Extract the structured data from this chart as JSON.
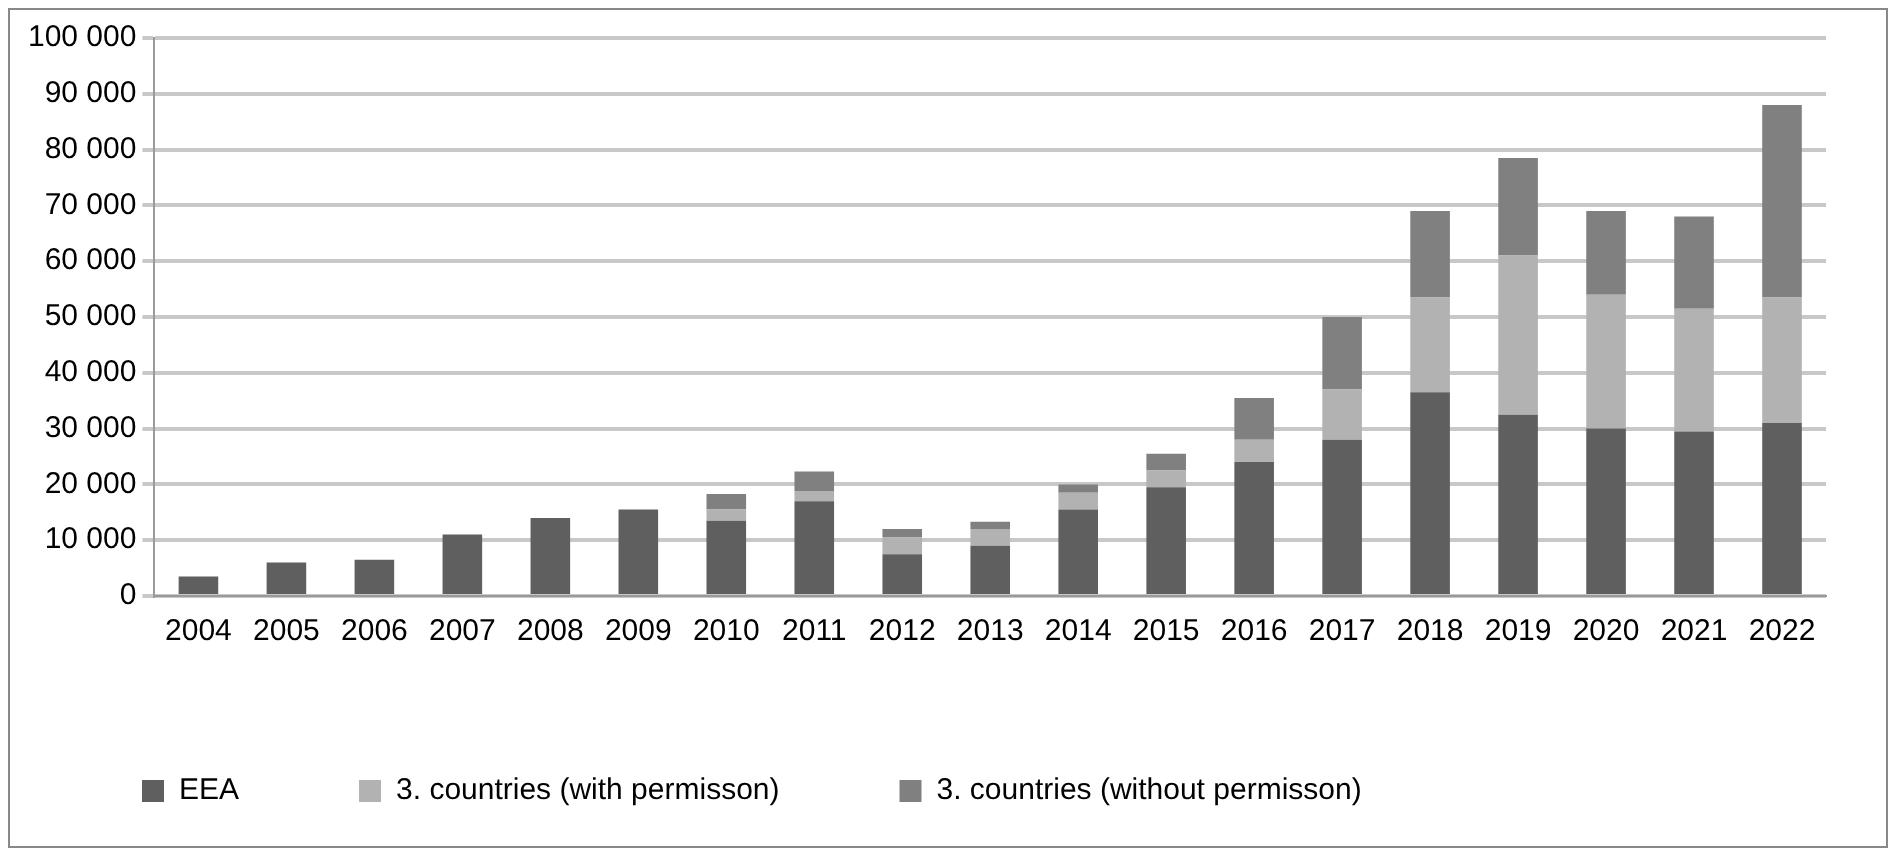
{
  "chart_data": {
    "type": "bar",
    "stacked": true,
    "categories": [
      "2004",
      "2005",
      "2006",
      "2007",
      "2008",
      "2009",
      "2010",
      "2011",
      "2012",
      "2013",
      "2014",
      "2015",
      "2016",
      "2017",
      "2018",
      "2019",
      "2020",
      "2021",
      "2022"
    ],
    "series": [
      {
        "name": "EEA",
        "color": "#5f5f5f",
        "values": [
          3500,
          6000,
          6500,
          11000,
          14000,
          15500,
          13500,
          17000,
          7500,
          9000,
          15500,
          19500,
          24000,
          28000,
          36500,
          32500,
          30000,
          29500,
          31000
        ]
      },
      {
        "name": "3. countries (with permisson)",
        "color": "#b2b2b2",
        "values": [
          null,
          null,
          null,
          null,
          null,
          null,
          2000,
          1800,
          3000,
          3000,
          3000,
          3000,
          4000,
          9000,
          17000,
          28500,
          24000,
          22000,
          22500
        ]
      },
      {
        "name": "3. countries (without permisson)",
        "color": "#808080",
        "values": [
          null,
          null,
          null,
          null,
          null,
          null,
          2800,
          3500,
          1500,
          1300,
          1500,
          3000,
          7500,
          13000,
          15500,
          17500,
          15000,
          16500,
          34500
        ]
      }
    ],
    "ylim": [
      0,
      100000
    ],
    "yticks": [
      {
        "value": 0,
        "label": "0"
      },
      {
        "value": 10000,
        "label": "10 000"
      },
      {
        "value": 20000,
        "label": "20 000"
      },
      {
        "value": 30000,
        "label": "30 000"
      },
      {
        "value": 40000,
        "label": "40 000"
      },
      {
        "value": 50000,
        "label": "50 000"
      },
      {
        "value": 60000,
        "label": "60 000"
      },
      {
        "value": 70000,
        "label": "70 000"
      },
      {
        "value": 80000,
        "label": "80 000"
      },
      {
        "value": 90000,
        "label": "90 000"
      },
      {
        "value": 100000,
        "label": "100 000"
      }
    ],
    "grid": "y",
    "legend": "bottom"
  }
}
